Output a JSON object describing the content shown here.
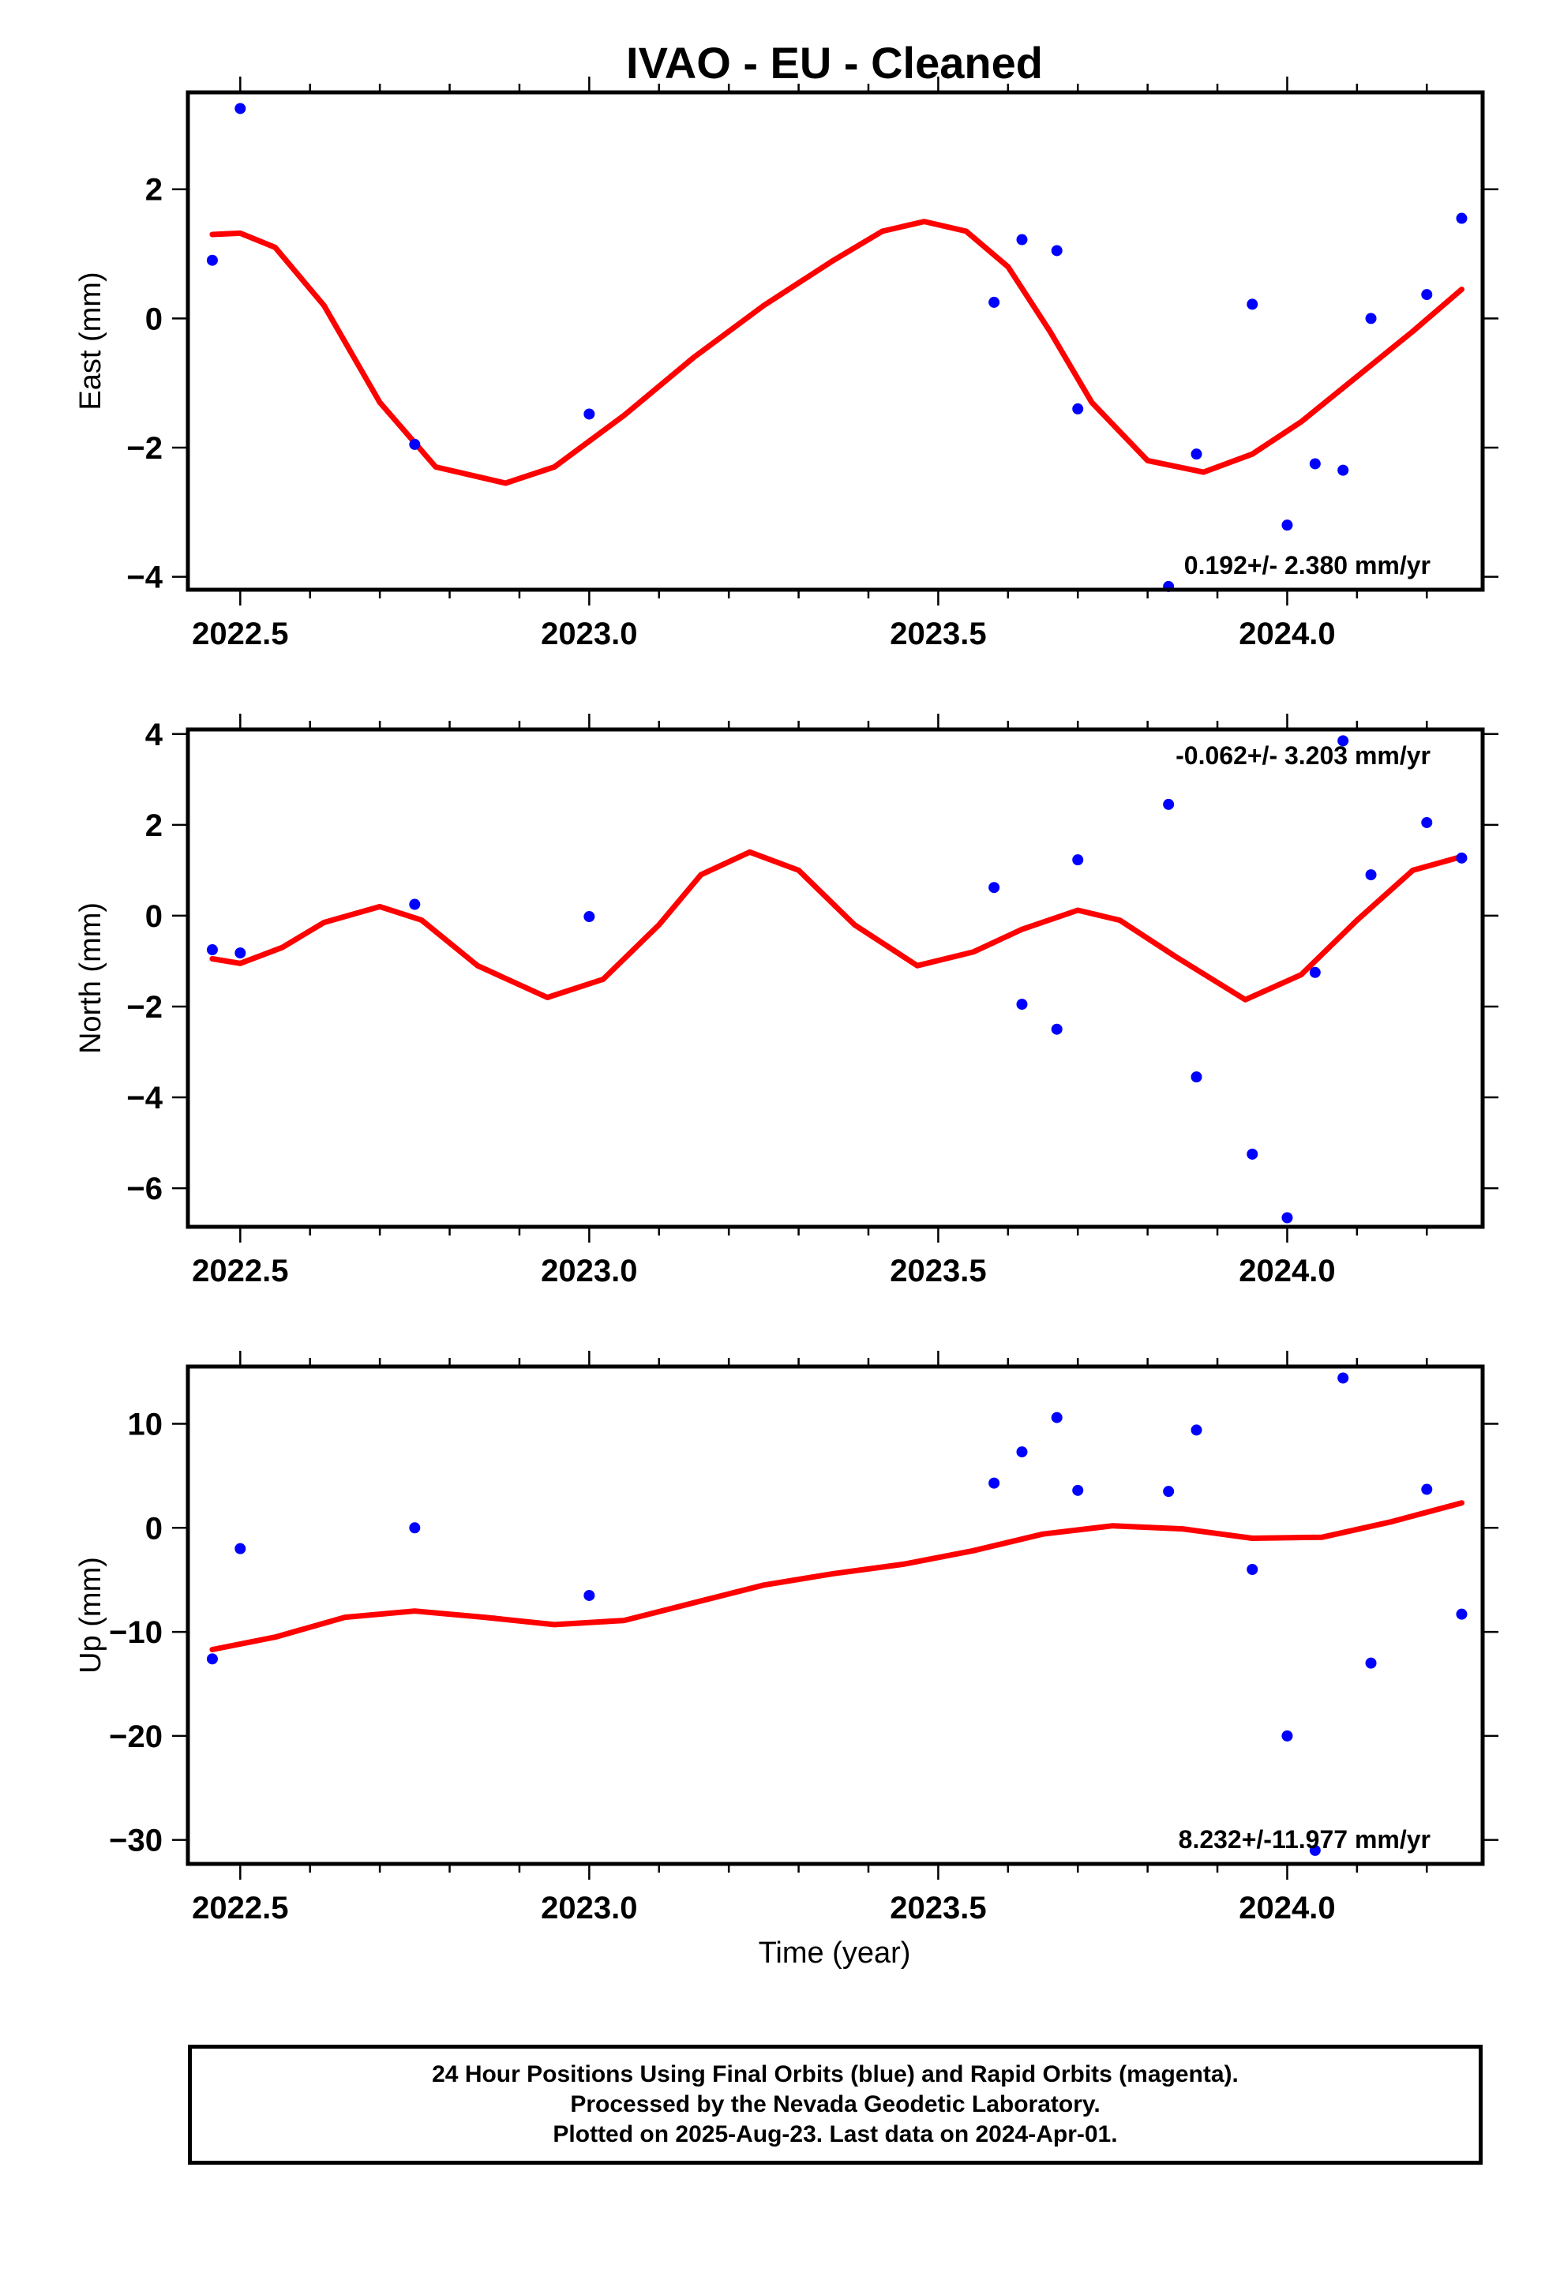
{
  "title": "IVAO  - EU - Cleaned",
  "xlabel": "Time (year)",
  "footer": {
    "line1": "24 Hour Positions Using Final Orbits (blue) and Rapid Orbits (magenta).",
    "line2": "Processed by the Nevada Geodetic Laboratory.",
    "line3": "Plotted on 2025-Aug-23. Last data on 2024-Apr-01."
  },
  "colors": {
    "final_orbits": "#0000ff",
    "fit_line": "#ff0000",
    "frame": "#000000"
  },
  "chart_data": [
    {
      "type": "scatter",
      "ylabel": "East (mm)",
      "rate_label": "0.192+/- 2.380 mm/yr",
      "xlim": [
        2022.425,
        2024.28
      ],
      "ylim": [
        -4.2,
        3.5
      ],
      "xticks": [
        2022.5,
        2023.0,
        2023.5,
        2024.0
      ],
      "xtick_labels": [
        "2022.5",
        "2023.0",
        "2023.5",
        "2024.0"
      ],
      "yticks": [
        2,
        0,
        -2,
        -4
      ],
      "ytick_labels": [
        "2",
        "0",
        "−2",
        "−4"
      ],
      "points": [
        {
          "x": 2022.46,
          "y": 0.9
        },
        {
          "x": 2022.5,
          "y": 3.25
        },
        {
          "x": 2022.75,
          "y": -1.95
        },
        {
          "x": 2023.0,
          "y": -1.48
        },
        {
          "x": 2023.58,
          "y": 0.25
        },
        {
          "x": 2023.62,
          "y": 1.22
        },
        {
          "x": 2023.67,
          "y": 1.05
        },
        {
          "x": 2023.7,
          "y": -1.4
        },
        {
          "x": 2023.83,
          "y": -4.15
        },
        {
          "x": 2023.87,
          "y": -2.1
        },
        {
          "x": 2023.95,
          "y": 0.22
        },
        {
          "x": 2024.0,
          "y": -3.2
        },
        {
          "x": 2024.04,
          "y": -2.25
        },
        {
          "x": 2024.08,
          "y": -2.35
        },
        {
          "x": 2024.12,
          "y": 0.0
        },
        {
          "x": 2024.2,
          "y": 0.37
        },
        {
          "x": 2024.25,
          "y": 1.55
        }
      ],
      "fit": [
        {
          "x": 2022.46,
          "y": 1.3
        },
        {
          "x": 2022.5,
          "y": 1.32
        },
        {
          "x": 2022.55,
          "y": 1.1
        },
        {
          "x": 2022.62,
          "y": 0.2
        },
        {
          "x": 2022.7,
          "y": -1.3
        },
        {
          "x": 2022.78,
          "y": -2.3
        },
        {
          "x": 2022.88,
          "y": -2.55
        },
        {
          "x": 2022.95,
          "y": -2.3
        },
        {
          "x": 2023.05,
          "y": -1.5
        },
        {
          "x": 2023.15,
          "y": -0.6
        },
        {
          "x": 2023.25,
          "y": 0.2
        },
        {
          "x": 2023.35,
          "y": 0.9
        },
        {
          "x": 2023.42,
          "y": 1.35
        },
        {
          "x": 2023.48,
          "y": 1.5
        },
        {
          "x": 2023.54,
          "y": 1.35
        },
        {
          "x": 2023.6,
          "y": 0.8
        },
        {
          "x": 2023.66,
          "y": -0.2
        },
        {
          "x": 2023.72,
          "y": -1.3
        },
        {
          "x": 2023.8,
          "y": -2.2
        },
        {
          "x": 2023.88,
          "y": -2.38
        },
        {
          "x": 2023.95,
          "y": -2.1
        },
        {
          "x": 2024.02,
          "y": -1.6
        },
        {
          "x": 2024.1,
          "y": -0.9
        },
        {
          "x": 2024.18,
          "y": -0.2
        },
        {
          "x": 2024.25,
          "y": 0.45
        }
      ]
    },
    {
      "type": "scatter",
      "ylabel": "North (mm)",
      "rate_label": "-0.062+/- 3.203 mm/yr",
      "xlim": [
        2022.425,
        2024.28
      ],
      "ylim": [
        -6.85,
        4.1
      ],
      "xticks": [
        2022.5,
        2023.0,
        2023.5,
        2024.0
      ],
      "xtick_labels": [
        "2022.5",
        "2023.0",
        "2023.5",
        "2024.0"
      ],
      "yticks": [
        4,
        2,
        0,
        -2,
        -4,
        -6
      ],
      "ytick_labels": [
        "4",
        "2",
        "0",
        "−2",
        "−4",
        "−6"
      ],
      "points": [
        {
          "x": 2022.46,
          "y": -0.75
        },
        {
          "x": 2022.5,
          "y": -0.82
        },
        {
          "x": 2022.75,
          "y": 0.25
        },
        {
          "x": 2023.0,
          "y": -0.02
        },
        {
          "x": 2023.58,
          "y": 0.62
        },
        {
          "x": 2023.62,
          "y": -1.95
        },
        {
          "x": 2023.67,
          "y": -2.5
        },
        {
          "x": 2023.7,
          "y": 1.23
        },
        {
          "x": 2023.83,
          "y": 2.45
        },
        {
          "x": 2023.87,
          "y": -3.55
        },
        {
          "x": 2023.95,
          "y": -5.25
        },
        {
          "x": 2024.0,
          "y": -6.65
        },
        {
          "x": 2024.04,
          "y": -1.25
        },
        {
          "x": 2024.08,
          "y": 3.85
        },
        {
          "x": 2024.12,
          "y": 0.9
        },
        {
          "x": 2024.2,
          "y": 2.05
        },
        {
          "x": 2024.25,
          "y": 1.27
        }
      ],
      "fit": [
        {
          "x": 2022.46,
          "y": -0.95
        },
        {
          "x": 2022.5,
          "y": -1.05
        },
        {
          "x": 2022.56,
          "y": -0.7
        },
        {
          "x": 2022.62,
          "y": -0.15
        },
        {
          "x": 2022.7,
          "y": 0.2
        },
        {
          "x": 2022.76,
          "y": -0.1
        },
        {
          "x": 2022.84,
          "y": -1.1
        },
        {
          "x": 2022.94,
          "y": -1.8
        },
        {
          "x": 2023.02,
          "y": -1.4
        },
        {
          "x": 2023.1,
          "y": -0.2
        },
        {
          "x": 2023.16,
          "y": 0.9
        },
        {
          "x": 2023.23,
          "y": 1.4
        },
        {
          "x": 2023.3,
          "y": 1.0
        },
        {
          "x": 2023.38,
          "y": -0.2
        },
        {
          "x": 2023.47,
          "y": -1.1
        },
        {
          "x": 2023.55,
          "y": -0.8
        },
        {
          "x": 2023.62,
          "y": -0.3
        },
        {
          "x": 2023.7,
          "y": 0.12
        },
        {
          "x": 2023.76,
          "y": -0.1
        },
        {
          "x": 2023.84,
          "y": -0.9
        },
        {
          "x": 2023.94,
          "y": -1.85
        },
        {
          "x": 2024.02,
          "y": -1.3
        },
        {
          "x": 2024.1,
          "y": -0.1
        },
        {
          "x": 2024.18,
          "y": 1.0
        },
        {
          "x": 2024.25,
          "y": 1.3
        }
      ]
    },
    {
      "type": "scatter",
      "ylabel": "Up (mm)",
      "rate_label": "8.232+/-11.977 mm/yr",
      "xlim": [
        2022.425,
        2024.28
      ],
      "ylim": [
        -32.3,
        15.5
      ],
      "xticks": [
        2022.5,
        2023.0,
        2023.5,
        2024.0
      ],
      "xtick_labels": [
        "2022.5",
        "2023.0",
        "2023.5",
        "2024.0"
      ],
      "yticks": [
        10,
        0,
        -10,
        -20,
        -30
      ],
      "ytick_labels": [
        "10",
        "0",
        "−10",
        "−20",
        "−30"
      ],
      "points": [
        {
          "x": 2022.46,
          "y": -12.6
        },
        {
          "x": 2022.5,
          "y": -2.0
        },
        {
          "x": 2022.75,
          "y": 0.0
        },
        {
          "x": 2023.0,
          "y": -6.5
        },
        {
          "x": 2023.58,
          "y": 4.3
        },
        {
          "x": 2023.62,
          "y": 7.3
        },
        {
          "x": 2023.67,
          "y": 10.6
        },
        {
          "x": 2023.7,
          "y": 3.6
        },
        {
          "x": 2023.83,
          "y": 3.5
        },
        {
          "x": 2023.87,
          "y": 9.4
        },
        {
          "x": 2023.95,
          "y": -4.0
        },
        {
          "x": 2024.0,
          "y": -20.0
        },
        {
          "x": 2024.04,
          "y": -31.0
        },
        {
          "x": 2024.08,
          "y": 14.4
        },
        {
          "x": 2024.12,
          "y": -13.0
        },
        {
          "x": 2024.2,
          "y": 3.7
        },
        {
          "x": 2024.25,
          "y": -8.3
        }
      ],
      "fit": [
        {
          "x": 2022.46,
          "y": -11.7
        },
        {
          "x": 2022.55,
          "y": -10.5
        },
        {
          "x": 2022.65,
          "y": -8.6
        },
        {
          "x": 2022.75,
          "y": -8.0
        },
        {
          "x": 2022.85,
          "y": -8.6
        },
        {
          "x": 2022.95,
          "y": -9.3
        },
        {
          "x": 2023.05,
          "y": -8.9
        },
        {
          "x": 2023.15,
          "y": -7.2
        },
        {
          "x": 2023.25,
          "y": -5.5
        },
        {
          "x": 2023.35,
          "y": -4.4
        },
        {
          "x": 2023.45,
          "y": -3.5
        },
        {
          "x": 2023.55,
          "y": -2.2
        },
        {
          "x": 2023.65,
          "y": -0.6
        },
        {
          "x": 2023.75,
          "y": 0.2
        },
        {
          "x": 2023.85,
          "y": -0.1
        },
        {
          "x": 2023.95,
          "y": -1.0
        },
        {
          "x": 2024.05,
          "y": -0.9
        },
        {
          "x": 2024.15,
          "y": 0.6
        },
        {
          "x": 2024.25,
          "y": 2.4
        }
      ]
    }
  ]
}
